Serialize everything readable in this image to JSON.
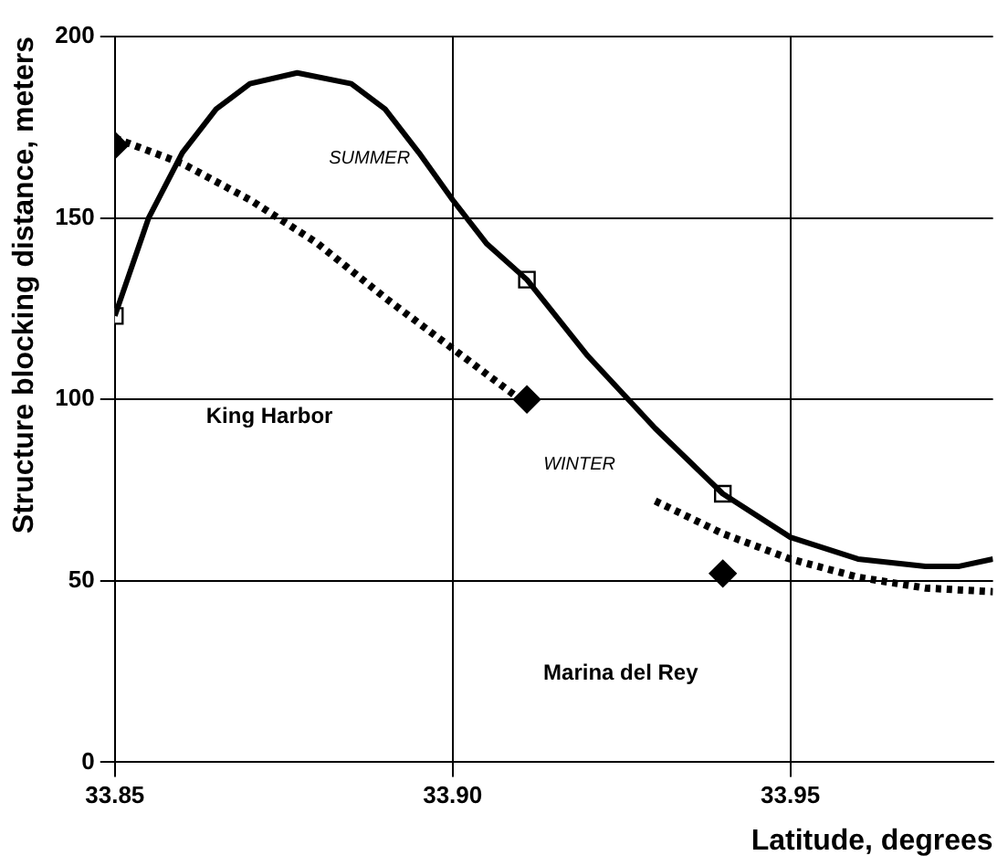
{
  "chart_data": {
    "type": "line",
    "xlabel": "Latitude, degrees",
    "ylabel": "Structure blocking distance, meters",
    "xlim": [
      33.85,
      33.98
    ],
    "xticks": [
      {
        "value": 33.85,
        "label": "33.85"
      },
      {
        "value": 33.9,
        "label": "33.90"
      },
      {
        "value": 33.95,
        "label": "33.95"
      }
    ],
    "ylim": [
      0,
      200
    ],
    "yticks": [
      0,
      50,
      100,
      150,
      200
    ],
    "grid": true,
    "legend": false,
    "series": [
      {
        "color": "#000000",
        "line_style": "solid",
        "marker": "none",
        "x": [
          33.85,
          33.855,
          33.86,
          33.865,
          33.87,
          33.877,
          33.885,
          33.89,
          33.895,
          33.9,
          33.905,
          33.911,
          33.92,
          33.93,
          33.94,
          33.95,
          33.96,
          33.97,
          33.975,
          33.98
        ],
        "values": [
          123,
          150,
          168,
          180,
          187,
          190,
          187,
          180,
          168,
          155,
          143,
          133,
          112,
          92,
          74,
          62,
          56,
          54,
          54,
          56
        ]
      },
      {
        "color": "#000000",
        "line_style": "dotted",
        "marker": "none",
        "x": [
          33.85,
          33.86,
          33.87,
          33.88,
          33.89,
          33.9,
          33.91,
          33.92,
          33.93,
          33.94,
          33.95,
          33.96,
          33.97,
          33.98
        ],
        "values": [
          172,
          165,
          155,
          143,
          128,
          114,
          100,
          null,
          72,
          63,
          56,
          51,
          48,
          47
        ]
      },
      {
        "type": "scatter",
        "color": "#000000",
        "marker": "square",
        "x": [
          33.85,
          33.911,
          33.94
        ],
        "values": [
          123,
          133,
          74
        ]
      },
      {
        "type": "scatter",
        "color": "#000000",
        "marker": "diamond",
        "x": [
          33.85,
          33.911,
          33.94
        ],
        "values": [
          170,
          100,
          52
        ]
      }
    ],
    "annotations": [
      "SUMMER",
      "WINTER",
      "King Harbor",
      "Marina del Rey"
    ]
  }
}
